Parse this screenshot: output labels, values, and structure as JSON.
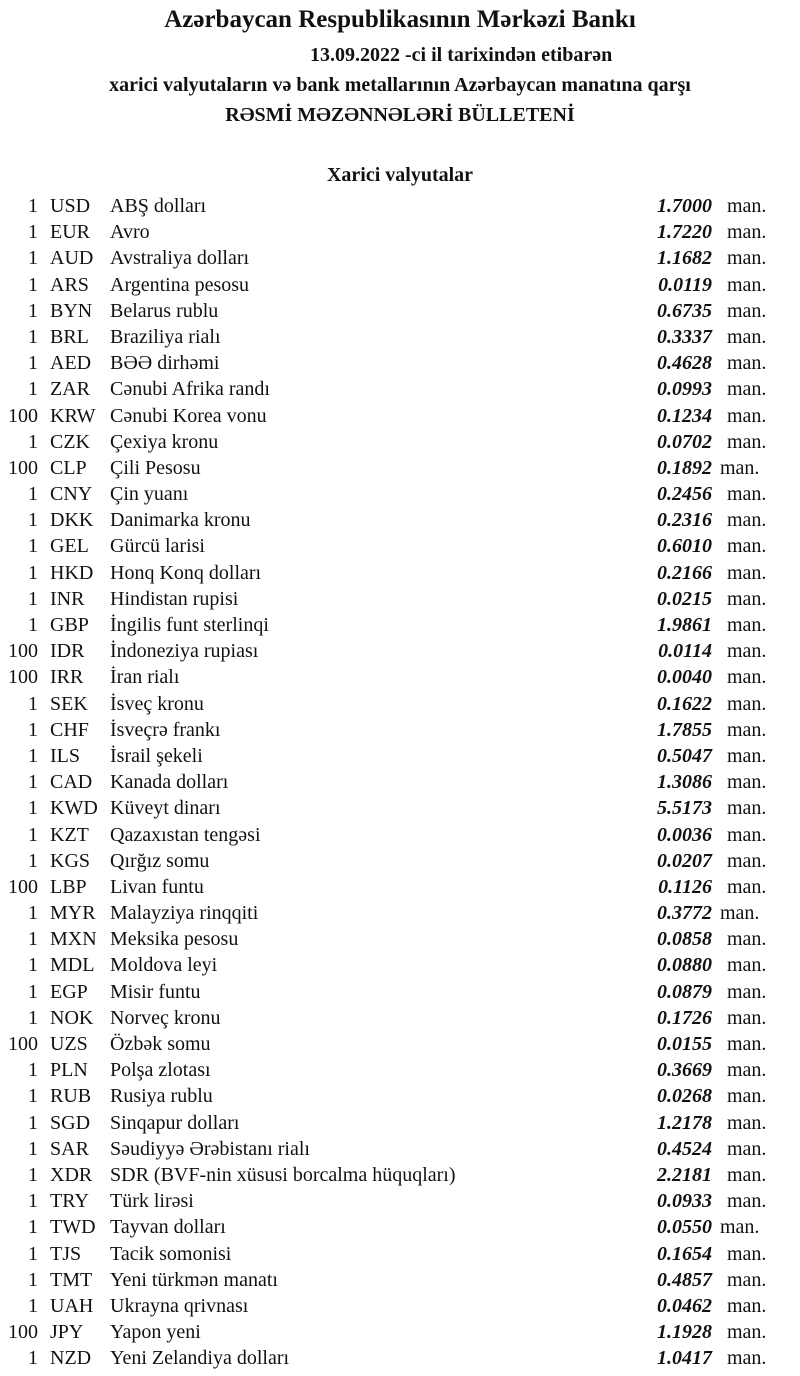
{
  "header": {
    "bank": "Azərbaycan Respublikasının Mərkəzi Bankı",
    "date_line": "13.09.2022 -ci il tarixindən etibarən",
    "subtitle": "xarici valyutaların və bank metallarının Azərbaycan manatına qarşı",
    "title": "RƏSMİ MƏZƏNNƏLƏRİ BÜLLETENİ"
  },
  "section": {
    "title": "Xarici valyutalar",
    "unit": "man.",
    "rows": [
      {
        "qty": "1",
        "code": "USD",
        "name": "ABŞ dolları",
        "rate": "1.7000"
      },
      {
        "qty": "1",
        "code": "EUR",
        "name": "Avro",
        "rate": "1.7220"
      },
      {
        "qty": "1",
        "code": "AUD",
        "name": "Avstraliya dolları",
        "rate": "1.1682"
      },
      {
        "qty": "1",
        "code": "ARS",
        "name": "Argentina pesosu",
        "rate": "0.0119"
      },
      {
        "qty": "1",
        "code": "BYN",
        "name": "Belarus rublu",
        "rate": "0.6735"
      },
      {
        "qty": "1",
        "code": "BRL",
        "name": "Braziliya rialı",
        "rate": "0.3337"
      },
      {
        "qty": "1",
        "code": "AED",
        "name": "BƏƏ dirhəmi",
        "rate": "0.4628"
      },
      {
        "qty": "1",
        "code": "ZAR",
        "name": "Cənubi Afrika randı",
        "rate": "0.0993"
      },
      {
        "qty": "100",
        "code": "KRW",
        "name": "Cənubi Korea vonu",
        "rate": "0.1234"
      },
      {
        "qty": "1",
        "code": "CZK",
        "name": "Çexiya kronu",
        "rate": "0.0702"
      },
      {
        "qty": "100",
        "code": "CLP",
        "name": "Çili Pesosu",
        "rate": "0.1892",
        "tight": true
      },
      {
        "qty": "1",
        "code": "CNY",
        "name": "Çin yuanı",
        "rate": "0.2456"
      },
      {
        "qty": "1",
        "code": "DKK",
        "name": "Danimarka kronu",
        "rate": "0.2316"
      },
      {
        "qty": "1",
        "code": "GEL",
        "name": "Gürcü larisi",
        "rate": "0.6010"
      },
      {
        "qty": "1",
        "code": "HKD",
        "name": "Honq Konq dolları",
        "rate": "0.2166"
      },
      {
        "qty": "1",
        "code": "INR",
        "name": "Hindistan rupisi",
        "rate": "0.0215"
      },
      {
        "qty": "1",
        "code": "GBP",
        "name": "İngilis funt sterlinqi",
        "rate": "1.9861"
      },
      {
        "qty": "100",
        "code": "IDR",
        "name": "İndoneziya rupiası",
        "rate": "0.0114"
      },
      {
        "qty": "100",
        "code": "IRR",
        "name": "İran rialı",
        "rate": "0.0040"
      },
      {
        "qty": "1",
        "code": "SEK",
        "name": "İsveç kronu",
        "rate": "0.1622"
      },
      {
        "qty": "1",
        "code": "CHF",
        "name": "İsveçrə frankı",
        "rate": "1.7855"
      },
      {
        "qty": "1",
        "code": "ILS",
        "name": "İsrail şekeli",
        "rate": "0.5047"
      },
      {
        "qty": "1",
        "code": "CAD",
        "name": "Kanada dolları",
        "rate": "1.3086"
      },
      {
        "qty": "1",
        "code": "KWD",
        "name": "Küveyt dinarı",
        "rate": "5.5173"
      },
      {
        "qty": "1",
        "code": "KZT",
        "name": "Qazaxıstan tengəsi",
        "rate": "0.0036"
      },
      {
        "qty": "1",
        "code": "KGS",
        "name": "Qırğız somu",
        "rate": "0.0207"
      },
      {
        "qty": "100",
        "code": "LBP",
        "name": "Livan funtu",
        "rate": "0.1126"
      },
      {
        "qty": "1",
        "code": "MYR",
        "name": "Malayziya rinqqiti",
        "rate": "0.3772",
        "tight": true
      },
      {
        "qty": "1",
        "code": "MXN",
        "name": "Meksika pesosu",
        "rate": "0.0858"
      },
      {
        "qty": "1",
        "code": "MDL",
        "name": "Moldova leyi",
        "rate": "0.0880"
      },
      {
        "qty": "1",
        "code": "EGP",
        "name": "Misir funtu",
        "rate": "0.0879"
      },
      {
        "qty": "1",
        "code": "NOK",
        "name": "Norveç kronu",
        "rate": "0.1726"
      },
      {
        "qty": "100",
        "code": "UZS",
        "name": "Özbək somu",
        "rate": "0.0155"
      },
      {
        "qty": "1",
        "code": "PLN",
        "name": "Polşa zlotası",
        "rate": "0.3669"
      },
      {
        "qty": "1",
        "code": "RUB",
        "name": "Rusiya rublu",
        "rate": "0.0268"
      },
      {
        "qty": "1",
        "code": "SGD",
        "name": "Sinqapur dolları",
        "rate": "1.2178"
      },
      {
        "qty": "1",
        "code": "SAR",
        "name": "Səudiyyə Ərəbistanı rialı",
        "rate": "0.4524"
      },
      {
        "qty": "1",
        "code": "XDR",
        "name": "SDR (BVF-nin xüsusi borcalma hüquqları)",
        "rate": "2.2181"
      },
      {
        "qty": "1",
        "code": "TRY",
        "name": "Türk lirəsi",
        "rate": "0.0933"
      },
      {
        "qty": "1",
        "code": "TWD",
        "name": "Tayvan dolları",
        "rate": "0.0550",
        "tight": true
      },
      {
        "qty": "1",
        "code": "TJS",
        "name": "Tacik somonisi",
        "rate": "0.1654"
      },
      {
        "qty": "1",
        "code": "TMT",
        "name": "Yeni türkmən manatı",
        "rate": "0.4857"
      },
      {
        "qty": "1",
        "code": "UAH",
        "name": "Ukrayna qrivnası",
        "rate": "0.0462"
      },
      {
        "qty": "100",
        "code": "JPY",
        "name": "Yapon yeni",
        "rate": "1.1928"
      },
      {
        "qty": "1",
        "code": "NZD",
        "name": "Yeni Zelandiya dolları",
        "rate": "1.0417"
      }
    ]
  }
}
